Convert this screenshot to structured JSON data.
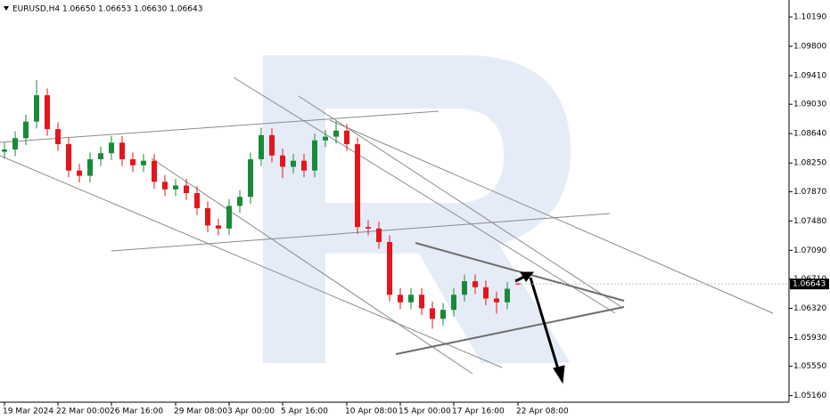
{
  "chart_data": {
    "type": "candlestick",
    "title": "EURUSD,H4  1.06650 1.06653 1.06630 1.06643",
    "categories": [
      "19 Mar 2024",
      null,
      null,
      null,
      null,
      "22 Mar 00:00",
      null,
      null,
      null,
      null,
      "26 Mar 16:00",
      null,
      null,
      null,
      null,
      null,
      "29 Mar 08:00",
      null,
      null,
      null,
      null,
      "3 Apr 00:00",
      null,
      null,
      null,
      null,
      "5 Apr 16:00",
      null,
      null,
      null,
      null,
      null,
      "10 Apr 08:00",
      null,
      null,
      null,
      null,
      "15 Apr 00:00",
      null,
      null,
      null,
      null,
      "17 Apr 16:00",
      null,
      null,
      null,
      null,
      null,
      "22 Apr 08:00"
    ],
    "open": [
      1.084,
      1.0843,
      1.0858,
      1.088,
      1.0915,
      1.087,
      1.085,
      1.0815,
      1.0808,
      1.083,
      1.0838,
      1.0852,
      1.083,
      1.0822,
      1.0828,
      1.08,
      1.079,
      1.0795,
      1.0785,
      1.0765,
      1.0742,
      1.0738,
      1.0768,
      1.078,
      1.083,
      1.0862,
      1.0835,
      1.082,
      1.0828,
      1.0815,
      1.0855,
      1.086,
      1.0868,
      1.085,
      1.074,
      1.0738,
      1.072,
      1.065,
      1.064,
      1.065,
      1.0632,
      1.0618,
      1.063,
      1.065,
      1.0668,
      1.066,
      1.0645,
      1.064,
      1.0665
    ],
    "high": [
      1.0852,
      1.0867,
      1.0889,
      1.0935,
      1.0924,
      1.0879,
      1.0859,
      1.0824,
      1.0839,
      1.0847,
      1.0861,
      1.0861,
      1.0839,
      1.0837,
      1.0837,
      1.0809,
      1.0804,
      1.0804,
      1.0794,
      1.0774,
      1.0751,
      1.0777,
      1.0789,
      1.0839,
      1.0872,
      1.0871,
      1.0844,
      1.0837,
      1.0837,
      1.0864,
      1.0869,
      1.088,
      1.0877,
      1.0859,
      1.0749,
      1.0747,
      1.0729,
      1.0659,
      1.0659,
      1.0659,
      1.0641,
      1.0639,
      1.0659,
      1.0677,
      1.0677,
      1.0669,
      1.0654,
      1.0667,
      1.06653
    ],
    "low": [
      1.0831,
      1.0834,
      1.0849,
      1.0871,
      1.0861,
      1.0841,
      1.0806,
      1.0799,
      1.0799,
      1.0821,
      1.0829,
      1.0821,
      1.0813,
      1.0813,
      1.0791,
      1.0781,
      1.0781,
      1.0776,
      1.0756,
      1.0733,
      1.0729,
      1.0729,
      1.0759,
      1.0771,
      1.0821,
      1.0826,
      1.0805,
      1.0811,
      1.0806,
      1.0806,
      1.0846,
      1.0851,
      1.0841,
      1.0731,
      1.0729,
      1.0711,
      1.0641,
      1.0631,
      1.0631,
      1.0623,
      1.0605,
      1.0609,
      1.0621,
      1.0641,
      1.0651,
      1.0636,
      1.0625,
      1.0631,
      1.0663
    ],
    "close": [
      1.0843,
      1.0858,
      1.088,
      1.0915,
      1.087,
      1.085,
      1.0815,
      1.0808,
      1.083,
      1.0838,
      1.0852,
      1.083,
      1.0822,
      1.0828,
      1.08,
      1.079,
      1.0795,
      1.0785,
      1.0765,
      1.0742,
      1.0738,
      1.0768,
      1.078,
      1.083,
      1.0862,
      1.0835,
      1.082,
      1.0828,
      1.0815,
      1.0855,
      1.086,
      1.0868,
      1.085,
      1.074,
      1.0738,
      1.072,
      1.065,
      1.064,
      1.065,
      1.0632,
      1.0618,
      1.063,
      1.065,
      1.0668,
      1.066,
      1.0645,
      1.064,
      1.0658,
      1.06643
    ],
    "up_color": "#1a8a3a",
    "down_color": "#e3161b",
    "ylim": [
      1.05073,
      1.10415
    ],
    "yticks": [
      {
        "value": 1.1019,
        "label": "1.10190"
      },
      {
        "value": 1.098,
        "label": "1.09800"
      },
      {
        "value": 1.0941,
        "label": "1.09410"
      },
      {
        "value": 1.0903,
        "label": "1.09030"
      },
      {
        "value": 1.0864,
        "label": "1.08640"
      },
      {
        "value": 1.0825,
        "label": "1.08250"
      },
      {
        "value": 1.0787,
        "label": "1.07870"
      },
      {
        "value": 1.0748,
        "label": "1.07480"
      },
      {
        "value": 1.0709,
        "label": "1.07090"
      },
      {
        "value": 1.0671,
        "label": "1.06710"
      },
      {
        "value": 1.0632,
        "label": "1.06320"
      },
      {
        "value": 1.0593,
        "label": "1.05930"
      },
      {
        "value": 1.0555,
        "label": "1.05550"
      },
      {
        "value": 1.0516,
        "label": "1.05160"
      }
    ],
    "last_price": {
      "value": 1.06643,
      "label": "1.06643"
    },
    "grid": false
  }
}
